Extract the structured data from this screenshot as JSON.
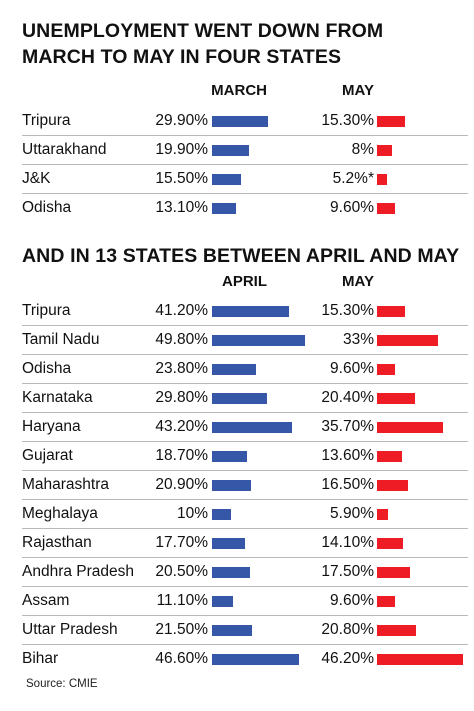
{
  "chart_data": [
    {
      "type": "bar",
      "title": "UNEMPLOYMENT WENT DOWN FROM MARCH TO MAY IN FOUR STATES",
      "title_lines": [
        "UNEMPLOYMENT WENT DOWN FROM",
        "MARCH TO MAY IN FOUR STATES"
      ],
      "col1_label": "MARCH",
      "col2_label": "MAY",
      "rows": [
        {
          "state": "Tripura",
          "v1": 29.9,
          "v1_label": "29.90%",
          "v2": 15.3,
          "v2_label": "15.30%"
        },
        {
          "state": "Uttarakhand",
          "v1": 19.9,
          "v1_label": "19.90%",
          "v2": 8,
          "v2_label": "8%"
        },
        {
          "state": "J&K",
          "v1": 15.5,
          "v1_label": "15.50%",
          "v2": 5.2,
          "v2_label": "5.2%*"
        },
        {
          "state": "Odisha",
          "v1": 13.1,
          "v1_label": "13.10%",
          "v2": 9.6,
          "v2_label": "9.60%"
        }
      ],
      "colors": {
        "col1": "#3656a8",
        "col2": "#ee1c25"
      }
    },
    {
      "type": "bar",
      "title": "AND IN 13 STATES BETWEEN APRIL AND MAY",
      "title_lines": [
        "AND IN 13 STATES BETWEEN APRIL AND MAY"
      ],
      "col1_label": "APRIL",
      "col2_label": "MAY",
      "rows": [
        {
          "state": "Tripura",
          "v1": 41.2,
          "v1_label": "41.20%",
          "v2": 15.3,
          "v2_label": "15.30%"
        },
        {
          "state": "Tamil Nadu",
          "v1": 49.8,
          "v1_label": "49.80%",
          "v2": 33,
          "v2_label": "33%"
        },
        {
          "state": "Odisha",
          "v1": 23.8,
          "v1_label": "23.80%",
          "v2": 9.6,
          "v2_label": "9.60%"
        },
        {
          "state": "Karnataka",
          "v1": 29.8,
          "v1_label": "29.80%",
          "v2": 20.4,
          "v2_label": "20.40%"
        },
        {
          "state": "Haryana",
          "v1": 43.2,
          "v1_label": "43.20%",
          "v2": 35.7,
          "v2_label": "35.70%"
        },
        {
          "state": "Gujarat",
          "v1": 18.7,
          "v1_label": "18.70%",
          "v2": 13.6,
          "v2_label": "13.60%"
        },
        {
          "state": "Maharashtra",
          "v1": 20.9,
          "v1_label": "20.90%",
          "v2": 16.5,
          "v2_label": "16.50%"
        },
        {
          "state": "Meghalaya",
          "v1": 10,
          "v1_label": "10%",
          "v2": 5.9,
          "v2_label": "5.90%"
        },
        {
          "state": "Rajasthan",
          "v1": 17.7,
          "v1_label": "17.70%",
          "v2": 14.1,
          "v2_label": "14.10%"
        },
        {
          "state": "Andhra Pradesh",
          "v1": 20.5,
          "v1_label": "20.50%",
          "v2": 17.5,
          "v2_label": "17.50%"
        },
        {
          "state": "Assam",
          "v1": 11.1,
          "v1_label": "11.10%",
          "v2": 9.6,
          "v2_label": "9.60%"
        },
        {
          "state": "Uttar Pradesh",
          "v1": 21.5,
          "v1_label": "21.50%",
          "v2": 20.8,
          "v2_label": "20.80%"
        },
        {
          "state": "Bihar",
          "v1": 46.6,
          "v1_label": "46.60%",
          "v2": 46.2,
          "v2_label": "46.20%"
        }
      ],
      "colors": {
        "col1": "#3656a8",
        "col2": "#ee1c25"
      }
    }
  ],
  "source": "Source: CMIE"
}
